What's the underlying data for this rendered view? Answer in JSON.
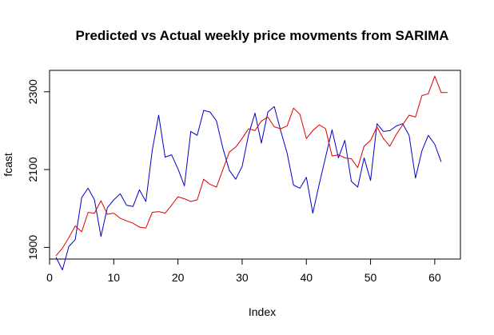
{
  "chart_data": {
    "type": "line",
    "title": "Predicted vs Actual weekly price movments from SARIMA",
    "xlabel": "Index",
    "ylabel": "fcast",
    "xlim": [
      0,
      64
    ],
    "ylim": [
      1870,
      2355
    ],
    "x_ticks": [
      0,
      10,
      20,
      30,
      40,
      50,
      60
    ],
    "y_ticks": [
      1900,
      2100,
      2300
    ],
    "grid": false,
    "legend": "none",
    "series": [
      {
        "color": "#0000cc",
        "x": [
          1,
          2,
          3,
          4,
          5,
          6,
          7,
          8,
          9,
          10,
          11,
          12,
          13,
          14,
          15,
          16,
          17,
          18,
          19,
          20,
          21,
          22,
          23,
          24,
          25,
          26,
          27,
          28,
          29,
          30,
          31,
          32,
          33,
          34,
          35,
          36,
          37,
          38,
          39,
          40,
          41,
          42,
          43,
          44,
          45,
          46,
          47,
          48,
          49,
          50,
          51,
          52,
          53,
          54,
          55,
          56,
          57,
          58,
          59,
          60,
          61
        ],
        "values": [
          1875,
          1842,
          1902,
          1920,
          2028,
          2052,
          2022,
          1928,
          2002,
          2022,
          2038,
          2008,
          2005,
          2048,
          2018,
          2150,
          2240,
          2132,
          2138,
          2102,
          2058,
          2198,
          2188,
          2252,
          2248,
          2225,
          2155,
          2098,
          2075,
          2108,
          2190,
          2245,
          2168,
          2248,
          2262,
          2200,
          2142,
          2060,
          2052,
          2080,
          1988,
          2062,
          2132,
          2202,
          2130,
          2175,
          2070,
          2055,
          2130,
          2072,
          2218,
          2198,
          2200,
          2212,
          2218,
          2188,
          2078,
          2148,
          2188,
          2165,
          2120
        ]
      },
      {
        "color": "#dd0000",
        "x": [
          1,
          2,
          3,
          4,
          5,
          6,
          7,
          8,
          9,
          10,
          11,
          12,
          13,
          14,
          15,
          16,
          17,
          18,
          19,
          20,
          21,
          22,
          23,
          24,
          25,
          26,
          27,
          28,
          29,
          30,
          31,
          32,
          33,
          34,
          35,
          36,
          37,
          38,
          39,
          40,
          41,
          42,
          43,
          44,
          45,
          46,
          47,
          48,
          49,
          50,
          51,
          52,
          53,
          54,
          55,
          56,
          57,
          58,
          59,
          60,
          61,
          62
        ],
        "values": [
          1878,
          1898,
          1925,
          1955,
          1940,
          1990,
          1988,
          2020,
          1985,
          1988,
          1975,
          1968,
          1962,
          1952,
          1950,
          1990,
          1992,
          1988,
          2008,
          2030,
          2025,
          2018,
          2022,
          2075,
          2062,
          2055,
          2100,
          2145,
          2158,
          2180,
          2205,
          2200,
          2225,
          2235,
          2210,
          2205,
          2212,
          2258,
          2242,
          2180,
          2200,
          2215,
          2205,
          2135,
          2138,
          2130,
          2128,
          2105,
          2160,
          2175,
          2210,
          2180,
          2160,
          2190,
          2215,
          2240,
          2235,
          2290,
          2295,
          2340,
          2298,
          2298
        ]
      }
    ]
  }
}
